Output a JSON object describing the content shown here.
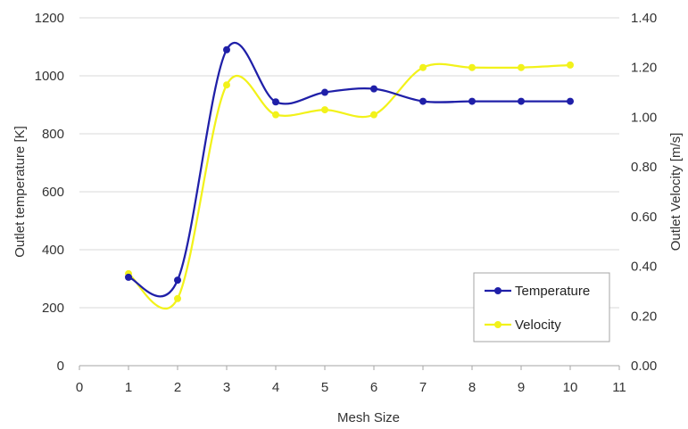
{
  "chart_data": {
    "type": "line",
    "smooth": true,
    "title": "",
    "xlabel": "Mesh Size",
    "ylabel": "Outlet temperature [K]",
    "y2label": "Outlet Velocity [m/s]",
    "xlim": [
      0,
      11
    ],
    "ylim": [
      0,
      1200
    ],
    "y2lim": [
      0,
      1.4
    ],
    "x_ticks": [
      "0",
      "1",
      "2",
      "3",
      "4",
      "5",
      "6",
      "7",
      "8",
      "9",
      "10",
      "11"
    ],
    "y_ticks": [
      "0",
      "200",
      "400",
      "600",
      "800",
      "1000",
      "1200"
    ],
    "y2_ticks": [
      "0.00",
      "0.20",
      "0.40",
      "0.60",
      "0.80",
      "1.00",
      "1.20",
      "1.40"
    ],
    "grid": "horizontal",
    "legend_position": "bottom-right",
    "series": [
      {
        "name": "Temperature",
        "axis": "left",
        "color": "#1f1fa8",
        "x": [
          1,
          2,
          3,
          4,
          5,
          6,
          7,
          8,
          9,
          10
        ],
        "values": [
          305,
          295,
          1090,
          910,
          943,
          955,
          912,
          912,
          912,
          912
        ]
      },
      {
        "name": "Velocity",
        "axis": "right",
        "color": "#f2f21a",
        "x": [
          1,
          2,
          3,
          4,
          5,
          6,
          7,
          8,
          9,
          10
        ],
        "values": [
          0.37,
          0.27,
          1.13,
          1.01,
          1.03,
          1.01,
          1.2,
          1.2,
          1.2,
          1.21
        ]
      }
    ]
  }
}
